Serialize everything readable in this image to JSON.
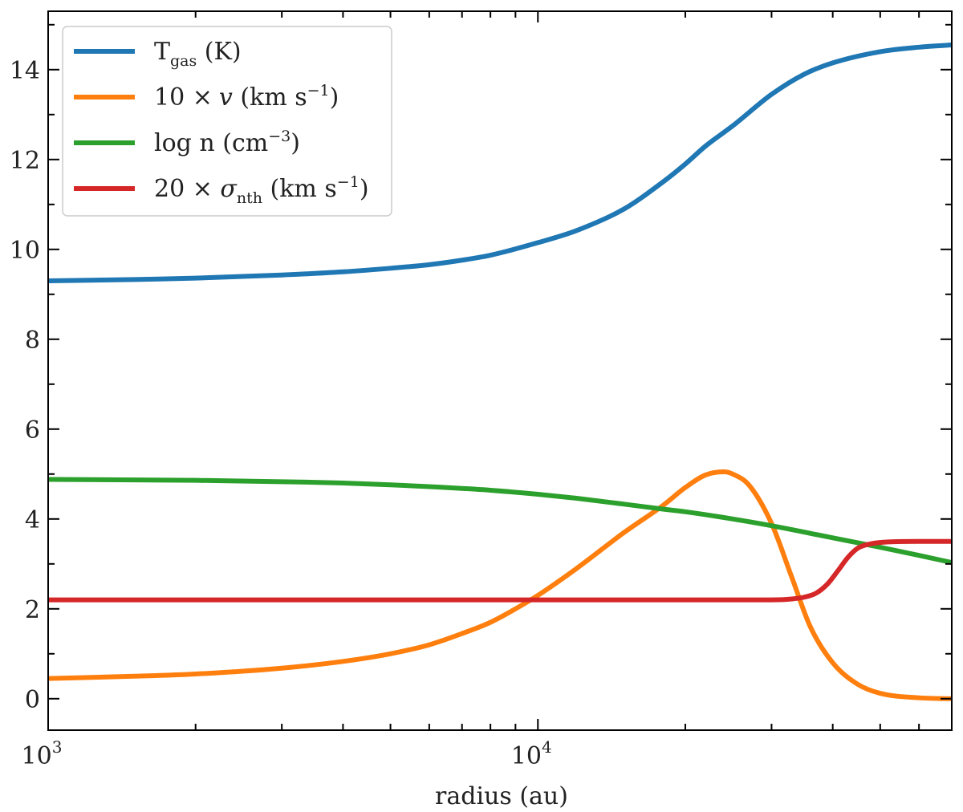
{
  "chart_data": {
    "type": "line",
    "xscale": "log",
    "xlabel": "radius (au)",
    "ylabel": "",
    "xlim": [
      1000,
      70000
    ],
    "ylim": [
      -0.7,
      15.3
    ],
    "grid": false,
    "legend_position": "top-left",
    "xticks": [
      {
        "value": 1000,
        "base": "10",
        "exp": "3"
      },
      {
        "value": 10000,
        "base": "10",
        "exp": "4"
      }
    ],
    "yticks": [
      {
        "value": 0,
        "label": "0"
      },
      {
        "value": 2,
        "label": "2"
      },
      {
        "value": 4,
        "label": "4"
      },
      {
        "value": 6,
        "label": "6"
      },
      {
        "value": 8,
        "label": "8"
      },
      {
        "value": 10,
        "label": "10"
      },
      {
        "value": 12,
        "label": "12"
      },
      {
        "value": 14,
        "label": "14"
      }
    ],
    "series": [
      {
        "key": "tgas",
        "legend": {
          "pre": "T",
          "sub": "gas",
          "post": " (K)",
          "sup": "",
          "close": ""
        },
        "color": "#1f77b4",
        "x": [
          1000,
          1500,
          2000,
          3000,
          4000,
          5000,
          6000,
          7000,
          8000,
          10000,
          12000,
          15000,
          18000,
          20000,
          22000,
          25000,
          30000,
          35000,
          40000,
          50000,
          60000,
          70000
        ],
        "y": [
          9.3,
          9.33,
          9.36,
          9.43,
          9.5,
          9.58,
          9.66,
          9.76,
          9.87,
          10.15,
          10.42,
          10.9,
          11.5,
          11.9,
          12.3,
          12.75,
          13.45,
          13.9,
          14.15,
          14.4,
          14.5,
          14.55
        ]
      },
      {
        "key": "velocity",
        "legend": {
          "pre": "10 ×",
          "sub": "",
          "post": "v (km s",
          "sup": "−1",
          "close": ")"
        },
        "color": "#ff7f0e",
        "x": [
          1000,
          1500,
          2000,
          3000,
          4000,
          5000,
          6000,
          7000,
          8000,
          9000,
          10000,
          12000,
          15000,
          18000,
          20000,
          22000,
          24000,
          25000,
          27000,
          30000,
          33000,
          36000,
          40000,
          45000,
          50000,
          60000,
          70000
        ],
        "y": [
          0.45,
          0.5,
          0.55,
          0.68,
          0.83,
          1.0,
          1.2,
          1.45,
          1.7,
          2.0,
          2.3,
          2.9,
          3.7,
          4.3,
          4.7,
          4.98,
          5.05,
          5.0,
          4.75,
          3.9,
          2.7,
          1.6,
          0.8,
          0.32,
          0.12,
          0.02,
          0.0
        ]
      },
      {
        "key": "density",
        "legend": {
          "pre": "log n (cm",
          "sub": "",
          "post": "",
          "sup": "−3",
          "close": ")"
        },
        "color": "#2ca02c",
        "x": [
          1000,
          2000,
          3000,
          4000,
          5000,
          6000,
          7000,
          8000,
          10000,
          12000,
          15000,
          18000,
          20000,
          25000,
          30000,
          40000,
          50000,
          60000,
          70000
        ],
        "y": [
          4.88,
          4.86,
          4.83,
          4.8,
          4.76,
          4.72,
          4.68,
          4.64,
          4.55,
          4.46,
          4.33,
          4.22,
          4.16,
          4.0,
          3.85,
          3.58,
          3.37,
          3.19,
          3.03
        ]
      },
      {
        "key": "sigma",
        "legend": {
          "pre": "20 × ",
          "sub": "nth",
          "post": " (km s",
          "sup": "−1",
          "close": ")",
          "symbol": "σ"
        },
        "color": "#d62728",
        "x": [
          1000,
          5000,
          10000,
          20000,
          30000,
          33000,
          35000,
          37000,
          39000,
          41000,
          43000,
          45000,
          48000,
          52000,
          60000,
          70000
        ],
        "y": [
          2.2,
          2.2,
          2.2,
          2.2,
          2.2,
          2.22,
          2.26,
          2.35,
          2.55,
          2.85,
          3.15,
          3.35,
          3.45,
          3.49,
          3.5,
          3.5
        ]
      }
    ]
  }
}
